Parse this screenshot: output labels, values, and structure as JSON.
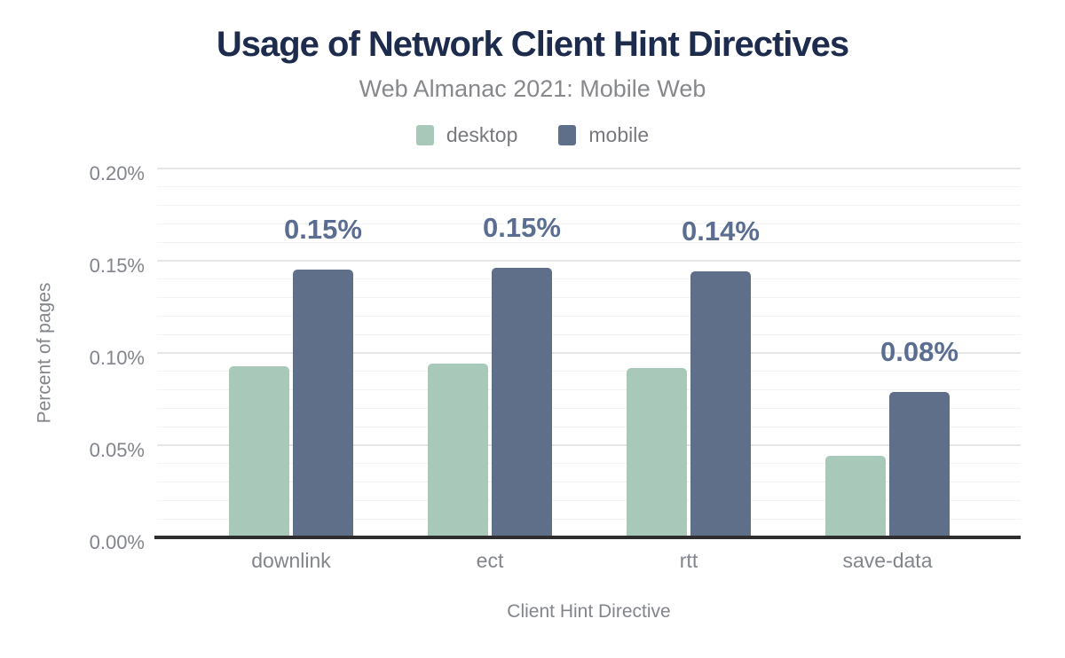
{
  "chart_data": {
    "type": "bar",
    "title": "Usage of Network Client Hint Directives",
    "subtitle": "Web Almanac 2021: Mobile Web",
    "xlabel": "Client Hint Directive",
    "ylabel": "Percent of pages",
    "categories": [
      "downlink",
      "ect",
      "rtt",
      "save-data"
    ],
    "series": [
      {
        "name": "desktop",
        "color": "#a8c9ba",
        "values": [
          0.093,
          0.094,
          0.092,
          0.044
        ]
      },
      {
        "name": "mobile",
        "color": "#5f6f8a",
        "values": [
          0.145,
          0.146,
          0.144,
          0.079
        ],
        "data_labels": [
          "0.15%",
          "0.15%",
          "0.14%",
          "0.08%"
        ]
      }
    ],
    "ylim": [
      0,
      0.2
    ],
    "yticks": [
      {
        "value": 0,
        "label": "0.00%"
      },
      {
        "value": 0.05,
        "label": "0.05%"
      },
      {
        "value": 0.1,
        "label": "0.10%"
      },
      {
        "value": 0.15,
        "label": "0.15%"
      },
      {
        "value": 0.2,
        "label": "0.20%"
      }
    ],
    "minor_tick_step": 0.01,
    "grid": true,
    "legend_position": "top"
  },
  "colors": {
    "title": "#1d2c4d",
    "subtitle": "#87888c",
    "axis_text": "#82858b",
    "legend_text": "#77797e",
    "desktop_bar": "#a8c9ba",
    "mobile_bar": "#5f6f8a",
    "data_label": "#5b6e91",
    "axis_line": "#2e2e2e",
    "grid_major": "#e6e6e6",
    "grid_minor": "#f3f3f3",
    "background": "#ffffff"
  }
}
